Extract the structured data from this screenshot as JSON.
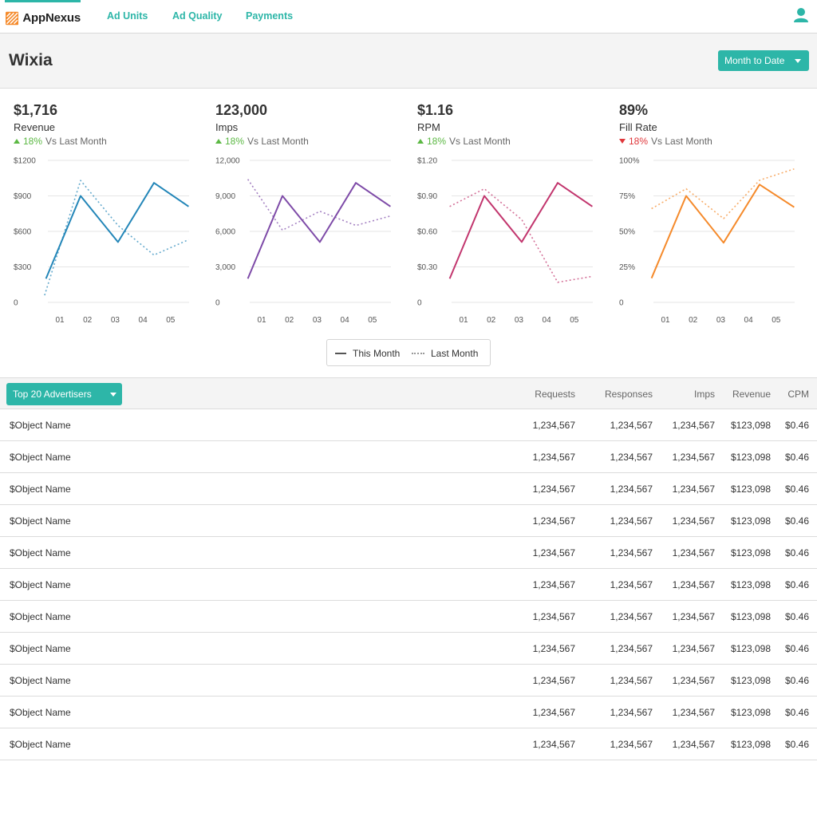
{
  "brand": {
    "name": "AppNexus",
    "accent": "#2db6a8"
  },
  "nav": {
    "links": [
      "Ad Units",
      "Ad Quality",
      "Payments"
    ],
    "user_icon": "user-icon"
  },
  "page": {
    "title": "Wixia",
    "period_label": "Month to Date"
  },
  "metrics": [
    {
      "value": "$1,716",
      "label": "Revenue",
      "change": "18%",
      "direction": "up",
      "vs": "Vs Last Month"
    },
    {
      "value": "123,000",
      "label": "Imps",
      "change": "18%",
      "direction": "up",
      "vs": "Vs Last Month"
    },
    {
      "value": "$1.16",
      "label": "RPM",
      "change": "18%",
      "direction": "up",
      "vs": "Vs Last Month"
    },
    {
      "value": "89%",
      "label": "Fill Rate",
      "change": "18%",
      "direction": "down",
      "vs": "Vs Last Month"
    }
  ],
  "legend": {
    "this_month": "This Month",
    "last_month": "Last Month"
  },
  "chart_data": [
    {
      "type": "line",
      "categories": [
        "01",
        "02",
        "03",
        "04",
        "05"
      ],
      "x_positions": [
        0,
        1,
        2,
        3,
        4
      ],
      "ylim": [
        0,
        1200
      ],
      "yticks": [
        "0",
        "$300",
        "$600",
        "$900",
        "$1200"
      ],
      "color": "#2386b8",
      "series": [
        {
          "name": "This Month",
          "style": "solid",
          "x": [
            -0.5,
            0.75,
            2.1,
            3.4,
            4.65
          ],
          "values": [
            200,
            900,
            510,
            1010,
            810
          ]
        },
        {
          "name": "Last Month",
          "style": "dotted",
          "x": [
            -0.55,
            0.75,
            2.1,
            3.4,
            4.65
          ],
          "values": [
            60,
            1030,
            650,
            400,
            530
          ]
        }
      ]
    },
    {
      "type": "line",
      "categories": [
        "01",
        "02",
        "03",
        "04",
        "05"
      ],
      "ylim": [
        0,
        12000
      ],
      "yticks": [
        "0",
        "3,000",
        "6,000",
        "9,000",
        "12,000"
      ],
      "color": "#7e4ba8",
      "series": [
        {
          "name": "This Month",
          "style": "solid",
          "x": [
            -0.5,
            0.75,
            2.1,
            3.4,
            4.65
          ],
          "values": [
            2000,
            9000,
            5100,
            10100,
            8100
          ]
        },
        {
          "name": "Last Month",
          "style": "dotted",
          "x": [
            -0.5,
            0.75,
            2.1,
            3.4,
            4.65
          ],
          "values": [
            10400,
            6100,
            7700,
            6500,
            7300
          ]
        }
      ]
    },
    {
      "type": "line",
      "categories": [
        "01",
        "02",
        "03",
        "04",
        "05"
      ],
      "ylim": [
        0,
        1.2
      ],
      "yticks": [
        "0",
        "$0.30",
        "$0.60",
        "$0.90",
        "$1.20"
      ],
      "color": "#c2366e",
      "series": [
        {
          "name": "This Month",
          "style": "solid",
          "x": [
            -0.5,
            0.75,
            2.1,
            3.4,
            4.65
          ],
          "values": [
            0.2,
            0.9,
            0.51,
            1.01,
            0.81
          ]
        },
        {
          "name": "Last Month",
          "style": "dotted",
          "x": [
            -0.5,
            0.75,
            2.1,
            3.4,
            4.65
          ],
          "values": [
            0.81,
            0.96,
            0.7,
            0.17,
            0.22
          ]
        }
      ]
    },
    {
      "type": "line",
      "categories": [
        "01",
        "02",
        "03",
        "04",
        "05"
      ],
      "ylim": [
        0,
        100
      ],
      "yticks": [
        "0",
        "25%",
        "50%",
        "75%",
        "100%"
      ],
      "color": "#f58a2b",
      "series": [
        {
          "name": "This Month",
          "style": "solid",
          "x": [
            -0.5,
            0.75,
            2.1,
            3.4,
            4.65
          ],
          "values": [
            17,
            75,
            42,
            83,
            67
          ]
        },
        {
          "name": "Last Month",
          "style": "dotted",
          "x": [
            -0.5,
            0.75,
            2.1,
            3.4,
            4.65
          ],
          "values": [
            66,
            80,
            59,
            86,
            94
          ]
        }
      ]
    }
  ],
  "table": {
    "dropdown_label": "Top 20 Advertisers",
    "columns": [
      "Requests",
      "Responses",
      "Imps",
      "Revenue",
      "CPM"
    ],
    "rows": [
      {
        "name": "$Object Name",
        "values": [
          "1,234,567",
          "1,234,567",
          "1,234,567",
          "$123,098",
          "$0.46"
        ]
      },
      {
        "name": "$Object Name",
        "values": [
          "1,234,567",
          "1,234,567",
          "1,234,567",
          "$123,098",
          "$0.46"
        ]
      },
      {
        "name": "$Object Name",
        "values": [
          "1,234,567",
          "1,234,567",
          "1,234,567",
          "$123,098",
          "$0.46"
        ]
      },
      {
        "name": "$Object Name",
        "values": [
          "1,234,567",
          "1,234,567",
          "1,234,567",
          "$123,098",
          "$0.46"
        ]
      },
      {
        "name": "$Object Name",
        "values": [
          "1,234,567",
          "1,234,567",
          "1,234,567",
          "$123,098",
          "$0.46"
        ]
      },
      {
        "name": "$Object Name",
        "values": [
          "1,234,567",
          "1,234,567",
          "1,234,567",
          "$123,098",
          "$0.46"
        ]
      },
      {
        "name": "$Object Name",
        "values": [
          "1,234,567",
          "1,234,567",
          "1,234,567",
          "$123,098",
          "$0.46"
        ]
      },
      {
        "name": "$Object Name",
        "values": [
          "1,234,567",
          "1,234,567",
          "1,234,567",
          "$123,098",
          "$0.46"
        ]
      },
      {
        "name": "$Object Name",
        "values": [
          "1,234,567",
          "1,234,567",
          "1,234,567",
          "$123,098",
          "$0.46"
        ]
      },
      {
        "name": "$Object Name",
        "values": [
          "1,234,567",
          "1,234,567",
          "1,234,567",
          "$123,098",
          "$0.46"
        ]
      },
      {
        "name": "$Object Name",
        "values": [
          "1,234,567",
          "1,234,567",
          "1,234,567",
          "$123,098",
          "$0.46"
        ]
      }
    ]
  }
}
